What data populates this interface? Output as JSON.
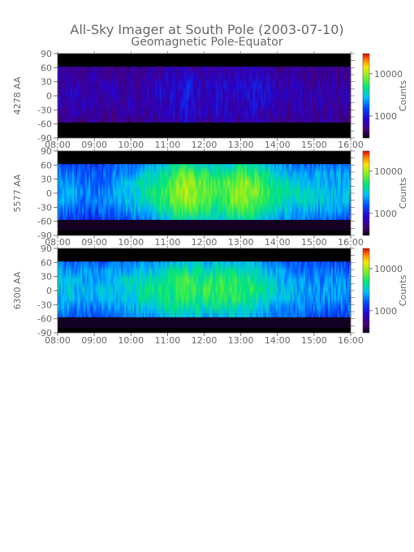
{
  "figure": {
    "title_line1": "All-Sky Imager at South Pole (2003-07-10)",
    "title_line2": "Geomagnetic Pole-Equator"
  },
  "chart_data": [
    {
      "type": "heatmap",
      "panel": "4278 AA",
      "ylabel": "4278 AA",
      "x_ticks": [
        "08:00",
        "09:00",
        "10:00",
        "11:00",
        "12:00",
        "13:00",
        "14:00",
        "15:00",
        "16:00"
      ],
      "xlim": [
        "08:00",
        "16:00"
      ],
      "y_ticks": [
        "90",
        "60",
        "30",
        "0",
        "-30",
        "-60",
        "-90"
      ],
      "ylim": [
        -90,
        90
      ],
      "colorbar": {
        "label": "Counts",
        "ticks": [
          "10000",
          "1000"
        ],
        "scale": "log"
      },
      "data_band": [
        -57,
        62
      ],
      "intensity_profile": [
        {
          "t": "08:00",
          "level": 0.18
        },
        {
          "t": "09:00",
          "level": 0.17
        },
        {
          "t": "10:00",
          "level": 0.17
        },
        {
          "t": "11:00",
          "level": 0.2
        },
        {
          "t": "11:30",
          "level": 0.26
        },
        {
          "t": "12:00",
          "level": 0.19
        },
        {
          "t": "12:30",
          "level": 0.22
        },
        {
          "t": "13:00",
          "level": 0.2
        },
        {
          "t": "13:30",
          "level": 0.23
        },
        {
          "t": "14:00",
          "level": 0.18
        },
        {
          "t": "15:00",
          "level": 0.17
        },
        {
          "t": "16:00",
          "level": 0.17
        }
      ]
    },
    {
      "type": "heatmap",
      "panel": "5577 AA",
      "ylabel": "5577 AA",
      "x_ticks": [
        "08:00",
        "09:00",
        "10:00",
        "11:00",
        "12:00",
        "13:00",
        "14:00",
        "15:00",
        "16:00"
      ],
      "xlim": [
        "08:00",
        "16:00"
      ],
      "y_ticks": [
        "90",
        "60",
        "30",
        "0",
        "-30",
        "-60",
        "-90"
      ],
      "ylim": [
        -90,
        90
      ],
      "colorbar": {
        "label": "Counts",
        "ticks": [
          "10000",
          "1000"
        ],
        "scale": "log"
      },
      "data_band": [
        -57,
        62
      ],
      "intensity_profile": [
        {
          "t": "08:00",
          "level": 0.45
        },
        {
          "t": "09:00",
          "level": 0.38
        },
        {
          "t": "10:00",
          "level": 0.48
        },
        {
          "t": "11:00",
          "level": 0.62
        },
        {
          "t": "11:30",
          "level": 0.74
        },
        {
          "t": "12:00",
          "level": 0.66
        },
        {
          "t": "12:30",
          "level": 0.62
        },
        {
          "t": "13:00",
          "level": 0.72
        },
        {
          "t": "13:30",
          "level": 0.66
        },
        {
          "t": "14:00",
          "level": 0.55
        },
        {
          "t": "15:00",
          "level": 0.48
        },
        {
          "t": "16:00",
          "level": 0.46
        }
      ]
    },
    {
      "type": "heatmap",
      "panel": "6300 AA",
      "ylabel": "6300 AA",
      "x_ticks": [
        "08:00",
        "09:00",
        "10:00",
        "11:00",
        "12:00",
        "13:00",
        "14:00",
        "15:00",
        "16:00"
      ],
      "xlim": [
        "08:00",
        "16:00"
      ],
      "y_ticks": [
        "90",
        "60",
        "30",
        "0",
        "-30",
        "-60",
        "-90"
      ],
      "ylim": [
        -90,
        90
      ],
      "colorbar": {
        "label": "Counts",
        "ticks": [
          "10000",
          "1000"
        ],
        "scale": "log"
      },
      "data_band": [
        -57,
        62
      ],
      "intensity_profile": [
        {
          "t": "08:00",
          "level": 0.48
        },
        {
          "t": "09:00",
          "level": 0.44
        },
        {
          "t": "10:00",
          "level": 0.5
        },
        {
          "t": "11:00",
          "level": 0.58
        },
        {
          "t": "11:30",
          "level": 0.62
        },
        {
          "t": "12:00",
          "level": 0.6
        },
        {
          "t": "12:30",
          "level": 0.61
        },
        {
          "t": "13:00",
          "level": 0.6
        },
        {
          "t": "13:30",
          "level": 0.56
        },
        {
          "t": "14:00",
          "level": 0.47
        },
        {
          "t": "15:00",
          "level": 0.42
        },
        {
          "t": "16:00",
          "level": 0.42
        }
      ]
    }
  ]
}
